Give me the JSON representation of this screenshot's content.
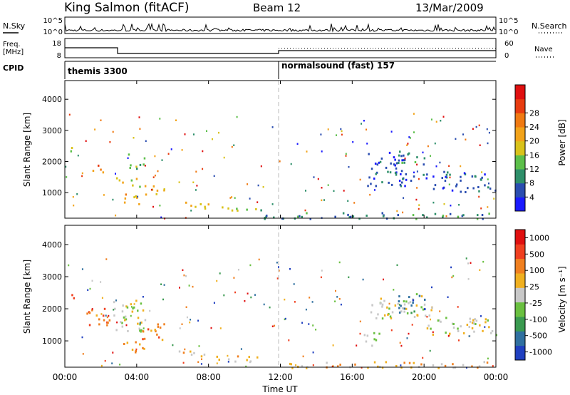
{
  "header": {
    "title": "King Salmon (fitACF)",
    "beam": "Beam 12",
    "date": "13/Mar/2009"
  },
  "top_panels": {
    "nsky_label": "N.Sky",
    "nsearch_label": "N.Search",
    "counts_ticks": [
      "10^5",
      "10^0"
    ],
    "freq_label_1": "Freq.",
    "freq_label_2": "[MHz]",
    "freq_ticks": [
      "18",
      "8"
    ],
    "nave_label": "Nave",
    "nave_ticks": [
      "60",
      "0"
    ],
    "cpid_label": "CPID",
    "cpid_segments": [
      {
        "label": "themis 3300",
        "start_hr": 0,
        "end_hr": 11.9
      },
      {
        "label": "normalsound (fast) 157",
        "start_hr": 11.9,
        "end_hr": 24
      }
    ]
  },
  "chart_data": [
    {
      "type": "heatmap",
      "panel": "power",
      "ylabel": "Slant Range [km]",
      "ylim": [
        180,
        4600
      ],
      "yticks": [
        "1000",
        "2000",
        "3000",
        "4000"
      ],
      "xlim_hr": [
        0,
        24
      ],
      "colorbar": {
        "label": "Power [dB]",
        "ticks": [
          "4",
          "8",
          "12",
          "16",
          "20",
          "24",
          "28"
        ],
        "range": [
          0,
          30
        ],
        "colors": [
          "#1a1aff",
          "#2a4db0",
          "#2e8f6a",
          "#5cbf4a",
          "#d9c21a",
          "#f2a31a",
          "#f07a12",
          "#e83c10",
          "#e01010"
        ]
      },
      "regions": [
        {
          "t0": 0.1,
          "t1": 0.5,
          "r0": 2200,
          "r1": 2500,
          "level": 3
        },
        {
          "t0": 1.5,
          "t1": 2.2,
          "r0": 1650,
          "r1": 1950,
          "level": 6
        },
        {
          "t0": 2.8,
          "t1": 4.2,
          "r0": 1200,
          "r1": 1500,
          "level": 4
        },
        {
          "t0": 3.2,
          "t1": 4.2,
          "r0": 600,
          "r1": 1000,
          "level": 5
        },
        {
          "t0": 4.2,
          "t1": 5.5,
          "r0": 950,
          "r1": 1300,
          "level": 5
        },
        {
          "t0": 3.5,
          "t1": 4.5,
          "r0": 1800,
          "r1": 2300,
          "level": 3
        },
        {
          "t0": 6.3,
          "t1": 8.0,
          "r0": 480,
          "r1": 720,
          "level": 4
        },
        {
          "t0": 8.2,
          "t1": 9.4,
          "r0": 430,
          "r1": 600,
          "level": 4
        },
        {
          "t0": 9.5,
          "t1": 11.5,
          "r0": 380,
          "r1": 520,
          "level": 3
        },
        {
          "t0": 11.0,
          "t1": 24.0,
          "r0": 180,
          "r1": 380,
          "level": 2
        },
        {
          "t0": 16.8,
          "t1": 19.0,
          "r0": 1200,
          "r1": 2400,
          "level": 1
        },
        {
          "t0": 18.5,
          "t1": 20.0,
          "r0": 1900,
          "r1": 2300,
          "level": 2
        },
        {
          "t0": 18.0,
          "t1": 24.0,
          "r0": 1400,
          "r1": 1700,
          "level": 1
        },
        {
          "t0": 20.0,
          "t1": 24.0,
          "r0": 1050,
          "r1": 1300,
          "level": 1
        }
      ]
    },
    {
      "type": "heatmap",
      "panel": "velocity",
      "ylabel": "Slant Range [km]",
      "ylim": [
        180,
        4600
      ],
      "yticks": [
        "1000",
        "2000",
        "3000",
        "4000"
      ],
      "xlim_hr": [
        0,
        24
      ],
      "xticks": [
        "00:00",
        "04:00",
        "08:00",
        "12:00",
        "16:00",
        "20:00",
        "00:00"
      ],
      "xlabel": "Time UT",
      "colorbar": {
        "label": "Velocity [m s⁻¹]",
        "ticks": [
          "1000",
          "500",
          "100",
          "25",
          "-25",
          "-100",
          "-500",
          "-1000"
        ],
        "colors": [
          "#2040c0",
          "#3070a0",
          "#3a9a50",
          "#6ac040",
          "#c8c8c8",
          "#f0b020",
          "#f08020",
          "#f04020",
          "#e01010"
        ]
      },
      "regions": [
        {
          "t0": 0.1,
          "t1": 0.5,
          "r0": 2200,
          "r1": 2500,
          "level": 7
        },
        {
          "t0": 1.2,
          "t1": 2.5,
          "r0": 1500,
          "r1": 2200,
          "level": 6
        },
        {
          "t0": 2.5,
          "t1": 4.5,
          "r0": 1300,
          "r1": 2300,
          "level": 4
        },
        {
          "t0": 3.2,
          "t1": 4.5,
          "r0": 600,
          "r1": 1000,
          "level": 5
        },
        {
          "t0": 4.2,
          "t1": 5.5,
          "r0": 950,
          "r1": 1600,
          "level": 6
        },
        {
          "t0": 6.3,
          "t1": 8.0,
          "r0": 480,
          "r1": 720,
          "level": 5
        },
        {
          "t0": 8.0,
          "t1": 11.0,
          "r0": 380,
          "r1": 560,
          "level": 5
        },
        {
          "t0": 11.5,
          "t1": 24.0,
          "r0": 180,
          "r1": 380,
          "level": 5
        },
        {
          "t0": 16.6,
          "t1": 17.6,
          "r0": 800,
          "r1": 1300,
          "level": 3
        },
        {
          "t0": 17.0,
          "t1": 20.5,
          "r0": 1700,
          "r1": 2500,
          "level": 4
        },
        {
          "t0": 18.5,
          "t1": 20.0,
          "r0": 1900,
          "r1": 2500,
          "level": 1
        },
        {
          "t0": 20.0,
          "t1": 24.0,
          "r0": 1150,
          "r1": 1750,
          "level": 4
        }
      ]
    }
  ]
}
